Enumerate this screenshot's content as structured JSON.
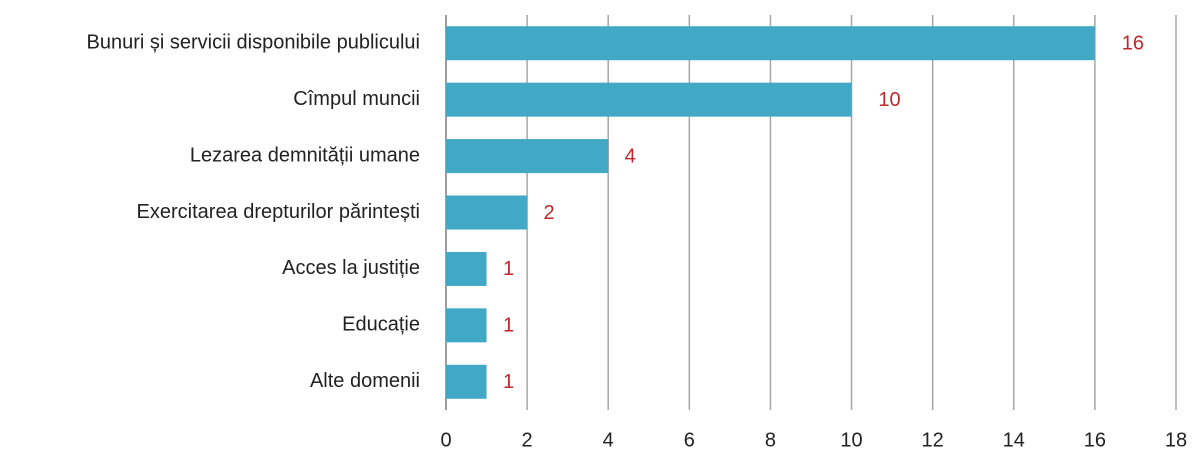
{
  "chart_data": {
    "type": "bar",
    "orientation": "horizontal",
    "categories": [
      "Bunuri și servicii disponibile publicului",
      "Cîmpul muncii",
      "Lezarea demnității umane",
      "Exercitarea drepturilor părintești",
      "Acces la justiție",
      "Educație",
      "Alte domenii"
    ],
    "values": [
      16,
      10,
      4,
      2,
      1,
      1,
      1
    ],
    "color": "#41a9c6",
    "value_label_color": "#c0272d",
    "xlim": [
      0,
      18
    ],
    "xticks": [
      0,
      2,
      4,
      6,
      8,
      10,
      12,
      14,
      16,
      18
    ],
    "grid": true
  }
}
